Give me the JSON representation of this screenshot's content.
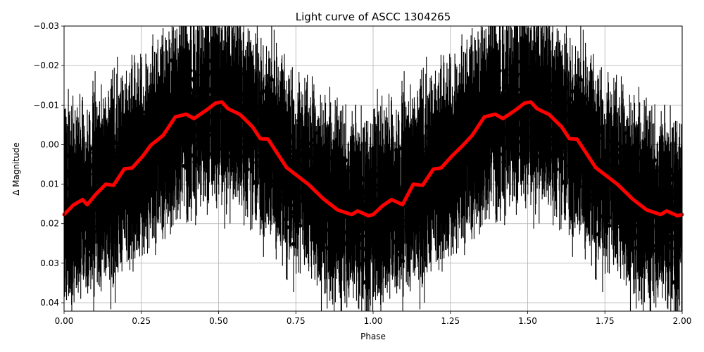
{
  "chart_data": {
    "type": "scatter",
    "title": "Light curve of ASCC 1304265",
    "xlabel": "Phase",
    "ylabel": "Δ Magnitude",
    "xlim": [
      0.0,
      2.0
    ],
    "ylim": [
      0.042,
      -0.03
    ],
    "y_inverted": true,
    "grid": true,
    "legend": null,
    "x_ticks": [
      "0.00",
      "0.25",
      "0.50",
      "0.75",
      "1.00",
      "1.25",
      "1.50",
      "1.75",
      "2.00"
    ],
    "y_ticks": [
      "−0.03",
      "−0.02",
      "−0.01",
      "0.00",
      "0.01",
      "0.02",
      "0.03",
      "0.04"
    ],
    "series": [
      {
        "name": "observations",
        "kind": "errorbar",
        "color": "#000000",
        "description": "Dense phase-folded photometric points with vertical error bars, scatter roughly ±0.02 mag around the model; repeated for phases 1–2"
      },
      {
        "name": "binned model",
        "kind": "line",
        "color": "#ff0000",
        "x": [
          0.0,
          0.03,
          0.06,
          0.075,
          0.1,
          0.135,
          0.16,
          0.195,
          0.22,
          0.255,
          0.28,
          0.32,
          0.36,
          0.395,
          0.42,
          0.46,
          0.49,
          0.51,
          0.53,
          0.57,
          0.61,
          0.635,
          0.66,
          0.72,
          0.79,
          0.84,
          0.885,
          0.93,
          0.95,
          0.985,
          1.0,
          1.03,
          1.06,
          1.095,
          1.13,
          1.16,
          1.195,
          1.22,
          1.255,
          1.29,
          1.32,
          1.36,
          1.395,
          1.42,
          1.46,
          1.49,
          1.51,
          1.53,
          1.57,
          1.61,
          1.635,
          1.66,
          1.72,
          1.79,
          1.84,
          1.885,
          1.93,
          1.95,
          1.985,
          2.0
        ],
        "y": [
          0.0177,
          0.0153,
          0.0139,
          0.0152,
          0.0128,
          0.01,
          0.0103,
          0.0061,
          0.0059,
          0.0029,
          0.0002,
          -0.0023,
          -0.007,
          -0.0077,
          -0.0066,
          -0.0087,
          -0.0105,
          -0.0108,
          -0.0091,
          -0.0076,
          -0.0045,
          -0.0015,
          -0.0014,
          0.0058,
          0.01,
          0.0138,
          0.0165,
          0.0177,
          0.0168,
          0.018,
          0.0177,
          0.0155,
          0.0139,
          0.0152,
          0.01,
          0.0103,
          0.0062,
          0.0059,
          0.0029,
          0.0002,
          -0.0023,
          -0.007,
          -0.0077,
          -0.0066,
          -0.0087,
          -0.0105,
          -0.0108,
          -0.0091,
          -0.0076,
          -0.0045,
          -0.0015,
          -0.0014,
          0.0058,
          0.01,
          0.0138,
          0.0165,
          0.0177,
          0.0168,
          0.018,
          0.0177
        ]
      }
    ]
  }
}
